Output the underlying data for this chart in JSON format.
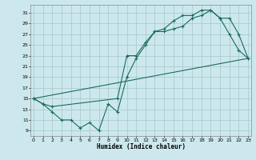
{
  "xlabel": "Humidex (Indice chaleur)",
  "bg_color": "#cce8ee",
  "grid_color": "#aacccc",
  "line_color": "#1a6b5a",
  "x_ticks": [
    0,
    1,
    2,
    3,
    4,
    5,
    6,
    7,
    8,
    9,
    10,
    11,
    12,
    13,
    14,
    15,
    16,
    17,
    18,
    19,
    20,
    21,
    22,
    23
  ],
  "y_ticks": [
    9,
    11,
    13,
    15,
    17,
    19,
    21,
    23,
    25,
    27,
    29,
    31
  ],
  "xlim": [
    -0.3,
    23.3
  ],
  "ylim": [
    8.0,
    32.5
  ],
  "line1_x": [
    0,
    1,
    2,
    3,
    4,
    5,
    6,
    7,
    8,
    9,
    10,
    11,
    12,
    13,
    14,
    15,
    16,
    17,
    18,
    19,
    20,
    21,
    22,
    23
  ],
  "line1_y": [
    15,
    14,
    12.5,
    11,
    11,
    9.5,
    10.5,
    9,
    14,
    12.5,
    19,
    22.5,
    25,
    27.5,
    27.5,
    28,
    28.5,
    30,
    30.5,
    31.5,
    30,
    27,
    24,
    22.5
  ],
  "line2_x": [
    0,
    1,
    2,
    9,
    10,
    11,
    12,
    13,
    14,
    15,
    16,
    17,
    18,
    19,
    20,
    21,
    22,
    23
  ],
  "line2_y": [
    15,
    14,
    13.5,
    15,
    23,
    23,
    25.5,
    27.5,
    28.0,
    29.5,
    30.5,
    30.5,
    31.5,
    31.5,
    30,
    30,
    27,
    22.5
  ],
  "line3_x": [
    0,
    23
  ],
  "line3_y": [
    15,
    22.5
  ]
}
